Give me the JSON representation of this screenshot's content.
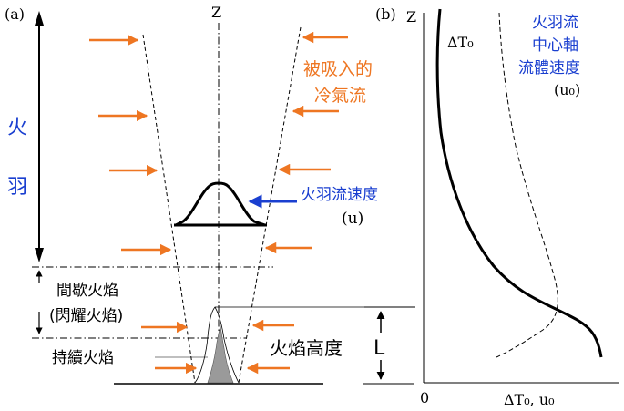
{
  "panel_a": {
    "label": "(a)",
    "axis_label": "Z",
    "plume_label_1": "火",
    "plume_label_2": "羽",
    "entrained_air_line1": "被吸入的",
    "entrained_air_line2": "冷氣流",
    "plume_velocity_label": "火羽流速度",
    "plume_velocity_symbol": "(u)",
    "intermittent_flame_line1": "間歇火焰",
    "intermittent_flame_line2": "(閃耀火焰)",
    "continuous_flame_label": "持續火焰",
    "flame_height_label": "火焰高度",
    "flame_height_symbol": "L"
  },
  "panel_b": {
    "label": "(b)",
    "axis_label": "Z",
    "curve_temp_label": "ΔT₀",
    "centerline_velocity_line1": "火羽流",
    "centerline_velocity_line2": "中心軸",
    "centerline_velocity_line3": "流體速度",
    "centerline_velocity_symbol": "(u₀)",
    "origin_label": "0",
    "x_axis_label": "ΔT₀, u₀"
  },
  "colors": {
    "arrow_orange": "#ee7622",
    "label_orange": "#ee7622",
    "label_blue": "#1a3fd0",
    "line_black": "#000000",
    "flame_gray": "#9a9a9a"
  }
}
